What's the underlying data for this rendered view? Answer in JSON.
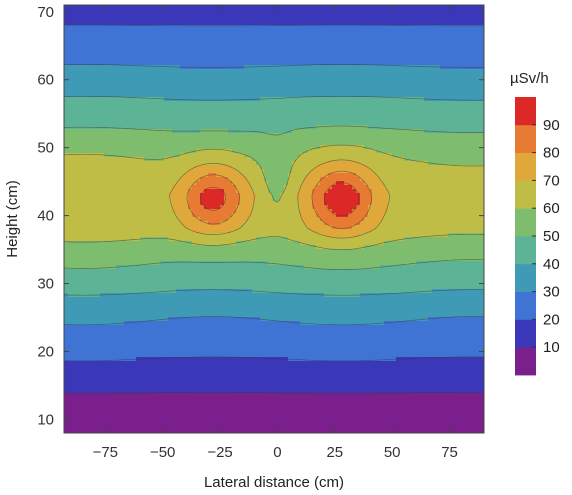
{
  "chart_data": {
    "type": "heatmap",
    "subtype": "filled-contour",
    "title": "",
    "xlabel": "Lateral distance (cm)",
    "ylabel": "Height (cm)",
    "xlim": [
      -93,
      90
    ],
    "ylim": [
      8,
      71
    ],
    "xticks": [
      -75,
      -50,
      -25,
      0,
      25,
      50,
      75
    ],
    "yticks": [
      10,
      20,
      30,
      40,
      50,
      60,
      70
    ],
    "x": [
      -90,
      -70,
      -50,
      -38,
      -30,
      -22,
      -15,
      -8,
      0,
      8,
      15,
      22,
      30,
      38,
      50,
      70,
      90
    ],
    "y": [
      8,
      11,
      13,
      15,
      17,
      19,
      21,
      23,
      25,
      27,
      29,
      31,
      33,
      35,
      37,
      39,
      41,
      43,
      45,
      47,
      49,
      51,
      53,
      55,
      57,
      59,
      61,
      63,
      65,
      67,
      69,
      71
    ],
    "colorbar": {
      "title": "µSv/h",
      "ticks": [
        10,
        20,
        30,
        40,
        50,
        60,
        70,
        80,
        90
      ],
      "levels": [
        0,
        10,
        20,
        30,
        40,
        50,
        60,
        70,
        80,
        90,
        100
      ],
      "colors": [
        "#7b1f8c",
        "#3a38b8",
        "#3f74d4",
        "#3f9ab6",
        "#5db395",
        "#7fbd6e",
        "#bfbd45",
        "#e0a83a",
        "#e87b33",
        "#dd2828"
      ]
    },
    "contour_lines": true,
    "grid": false,
    "legend": "right"
  }
}
